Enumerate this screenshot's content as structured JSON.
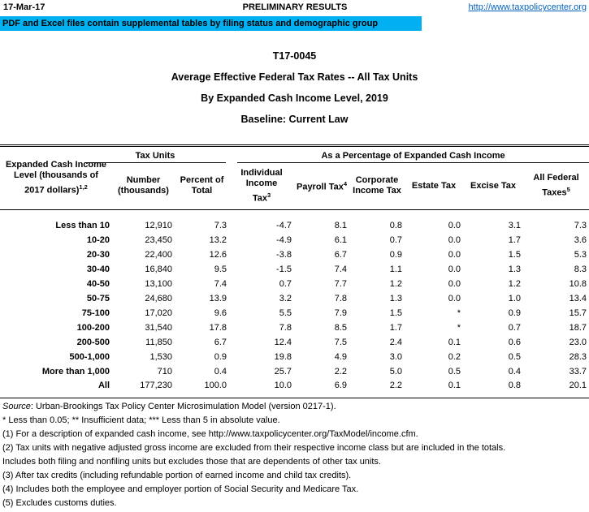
{
  "header": {
    "date": "17-Mar-17",
    "status": "PRELIMINARY RESULTS",
    "link": "http://www.taxpolicycenter.org",
    "banner": "PDF and Excel files contain supplemental tables by filing status and demographic group"
  },
  "title": {
    "id": "T17-0045",
    "main": "Average Effective Federal Tax Rates -- All Tax Units",
    "sub": "By Expanded Cash Income Level, 2019",
    "baseline": "Baseline: Current Law"
  },
  "table": {
    "row_header": {
      "l1": "Expanded Cash Income",
      "l2": "Level (thousands of",
      "l3": "2017 dollars)",
      "sup": "1,2"
    },
    "groups": {
      "tax_units": "Tax Units",
      "percentage": "As a Percentage of Expanded Cash Income"
    },
    "columns": [
      {
        "l1": "Number",
        "l2": "(thousands)"
      },
      {
        "l1": "Percent of",
        "l2": "Total"
      },
      {
        "l1": "Individual",
        "l2": "Income",
        "l3": "Tax",
        "sup": "3"
      },
      {
        "l1": "Payroll Tax",
        "sup": "4"
      },
      {
        "l1": "Corporate",
        "l2": "Income Tax"
      },
      {
        "l1": "Estate Tax"
      },
      {
        "l1": "Excise Tax"
      },
      {
        "l1": "All Federal",
        "l2": "Taxes",
        "sup": "5"
      }
    ],
    "rows": [
      [
        "Less than 10",
        "12,910",
        "7.3",
        "-4.7",
        "8.1",
        "0.8",
        "0.0",
        "3.1",
        "7.3"
      ],
      [
        "10-20",
        "23,450",
        "13.2",
        "-4.9",
        "6.1",
        "0.7",
        "0.0",
        "1.7",
        "3.6"
      ],
      [
        "20-30",
        "22,400",
        "12.6",
        "-3.8",
        "6.7",
        "0.9",
        "0.0",
        "1.5",
        "5.3"
      ],
      [
        "30-40",
        "16,840",
        "9.5",
        "-1.5",
        "7.4",
        "1.1",
        "0.0",
        "1.3",
        "8.3"
      ],
      [
        "40-50",
        "13,100",
        "7.4",
        "0.7",
        "7.7",
        "1.2",
        "0.0",
        "1.2",
        "10.8"
      ],
      [
        "50-75",
        "24,680",
        "13.9",
        "3.2",
        "7.8",
        "1.3",
        "0.0",
        "1.0",
        "13.4"
      ],
      [
        "75-100",
        "17,020",
        "9.6",
        "5.5",
        "7.9",
        "1.5",
        "*",
        "0.9",
        "15.7"
      ],
      [
        "100-200",
        "31,540",
        "17.8",
        "7.8",
        "8.5",
        "1.7",
        "*",
        "0.7",
        "18.7"
      ],
      [
        "200-500",
        "11,850",
        "6.7",
        "12.4",
        "7.5",
        "2.4",
        "0.1",
        "0.6",
        "23.0"
      ],
      [
        "500-1,000",
        "1,530",
        "0.9",
        "19.8",
        "4.9",
        "3.0",
        "0.2",
        "0.5",
        "28.3"
      ],
      [
        "More than 1,000",
        "710",
        "0.4",
        "25.7",
        "2.2",
        "5.0",
        "0.5",
        "0.4",
        "33.7"
      ],
      [
        "All",
        "177,230",
        "100.0",
        "10.0",
        "6.9",
        "2.2",
        "0.1",
        "0.8",
        "20.1"
      ]
    ]
  },
  "footnotes": {
    "source_label": "Source",
    "source_text": ": Urban-Brookings Tax Policy Center Microsimulation Model (version 0217-1).",
    "notes": [
      "* Less than 0.05; ** Insufficient data; *** Less than 5 in absolute value.",
      "(1) For a description of expanded cash income, see http://www.taxpolicycenter.org/TaxModel/income.cfm.",
      "(2) Tax units with negative adjusted gross income are excluded from their respective income class but are included in the totals.",
      "Includes both filing and nonfiling units but excludes those that are dependents of other tax units.",
      "(3) After tax credits (including refundable portion of earned income and child tax credits).",
      "(4) Includes both the employee and employer portion of Social Security and Medicare Tax.",
      "(5) Excludes customs duties."
    ]
  },
  "colors": {
    "banner_bg": "#00B0F0",
    "link": "#0563C1"
  }
}
